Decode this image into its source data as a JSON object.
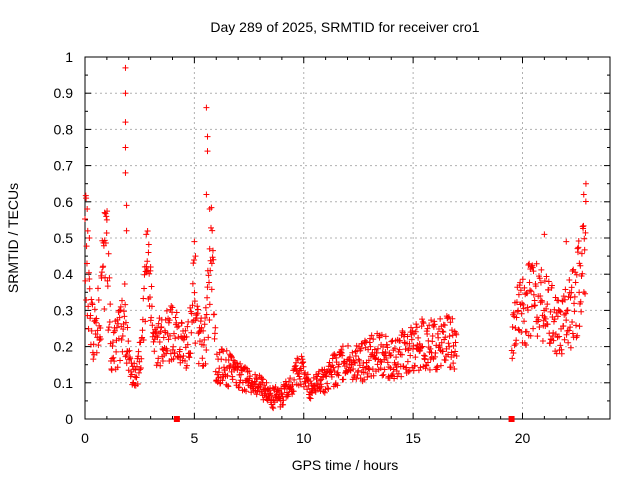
{
  "chart_data": {
    "type": "scatter",
    "title": "Day 289 of 2025, SRMTID for receiver cro1",
    "xlabel": "GPS time / hours",
    "ylabel": "SRMTID / TECUs",
    "xlim": [
      0,
      24
    ],
    "ylim": [
      0,
      1
    ],
    "xticks": [
      "0",
      "5",
      "10",
      "15",
      "20"
    ],
    "yticks": [
      "0",
      "0.1",
      "0.2",
      "0.3",
      "0.4",
      "0.5",
      "0.6",
      "0.7",
      "0.8",
      "0.9",
      "1"
    ],
    "grid": true,
    "marker": "+",
    "color": "#ff0000",
    "outliers_x": [
      4.2,
      19.5
    ],
    "outliers_y": [
      0.0,
      0.0
    ],
    "series": [
      {
        "name": "SRMTID",
        "trend": [
          [
            0.0,
            0.55
          ],
          [
            0.2,
            0.3
          ],
          [
            0.5,
            0.22
          ],
          [
            0.8,
            0.38
          ],
          [
            1.0,
            0.45
          ],
          [
            1.2,
            0.18
          ],
          [
            1.5,
            0.22
          ],
          [
            1.8,
            0.3
          ],
          [
            2.0,
            0.16
          ],
          [
            2.3,
            0.12
          ],
          [
            2.6,
            0.18
          ],
          [
            2.8,
            0.45
          ],
          [
            3.0,
            0.3
          ],
          [
            3.3,
            0.2
          ],
          [
            3.6,
            0.22
          ],
          [
            4.0,
            0.25
          ],
          [
            4.3,
            0.22
          ],
          [
            4.6,
            0.18
          ],
          [
            5.0,
            0.35
          ],
          [
            5.2,
            0.2
          ],
          [
            5.5,
            0.22
          ],
          [
            5.8,
            0.45
          ],
          [
            6.0,
            0.15
          ],
          [
            6.5,
            0.14
          ],
          [
            7.0,
            0.12
          ],
          [
            7.5,
            0.1
          ],
          [
            8.0,
            0.09
          ],
          [
            8.5,
            0.06
          ],
          [
            9.0,
            0.06
          ],
          [
            9.5,
            0.1
          ],
          [
            9.8,
            0.14
          ],
          [
            10.0,
            0.12
          ],
          [
            10.3,
            0.08
          ],
          [
            10.7,
            0.1
          ],
          [
            11.0,
            0.11
          ],
          [
            11.5,
            0.14
          ],
          [
            12.0,
            0.16
          ],
          [
            12.5,
            0.15
          ],
          [
            13.0,
            0.17
          ],
          [
            13.5,
            0.18
          ],
          [
            14.0,
            0.16
          ],
          [
            14.5,
            0.18
          ],
          [
            15.0,
            0.19
          ],
          [
            15.5,
            0.21
          ],
          [
            16.0,
            0.2
          ],
          [
            16.5,
            0.22
          ],
          [
            17.0,
            0.21
          ],
          [
            19.5,
            0.2
          ],
          [
            19.8,
            0.28
          ],
          [
            20.1,
            0.3
          ],
          [
            20.4,
            0.35
          ],
          [
            20.7,
            0.32
          ],
          [
            21.0,
            0.3
          ],
          [
            21.4,
            0.27
          ],
          [
            21.8,
            0.25
          ],
          [
            22.1,
            0.28
          ],
          [
            22.4,
            0.33
          ],
          [
            22.7,
            0.4
          ],
          [
            22.9,
            0.55
          ]
        ],
        "spikes": [
          [
            0.05,
            0.61
          ],
          [
            0.1,
            0.58
          ],
          [
            0.2,
            0.5
          ],
          [
            0.9,
            0.57
          ],
          [
            1.0,
            0.55
          ],
          [
            1.85,
            0.97
          ],
          [
            1.85,
            0.9
          ],
          [
            1.85,
            0.82
          ],
          [
            1.85,
            0.75
          ],
          [
            1.85,
            0.68
          ],
          [
            1.9,
            0.59
          ],
          [
            1.9,
            0.52
          ],
          [
            2.8,
            0.51
          ],
          [
            2.9,
            0.46
          ],
          [
            3.0,
            0.42
          ],
          [
            5.0,
            0.49
          ],
          [
            5.05,
            0.45
          ],
          [
            5.55,
            0.86
          ],
          [
            5.6,
            0.78
          ],
          [
            5.6,
            0.74
          ],
          [
            5.55,
            0.62
          ],
          [
            5.7,
            0.58
          ],
          [
            5.7,
            0.47
          ],
          [
            5.8,
            0.43
          ],
          [
            21.0,
            0.51
          ],
          [
            22.0,
            0.49
          ],
          [
            22.6,
            0.43
          ],
          [
            22.8,
            0.62
          ],
          [
            22.9,
            0.65
          ]
        ]
      }
    ]
  }
}
